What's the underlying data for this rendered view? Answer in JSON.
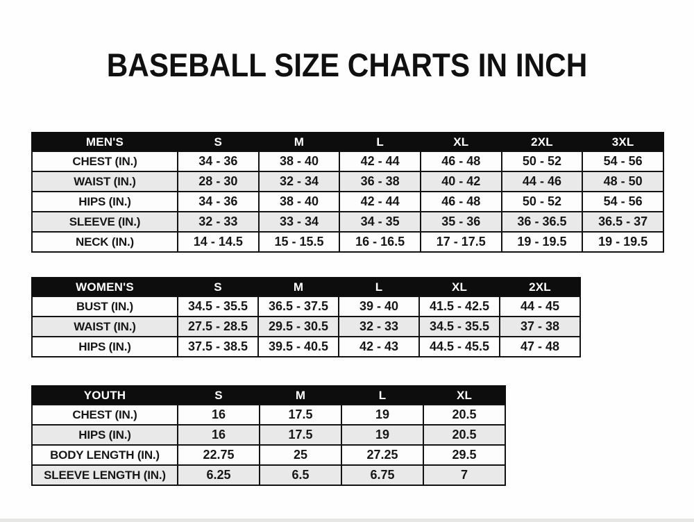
{
  "title": "BASEBALL SIZE CHARTS IN INCH",
  "colors": {
    "header_bg": "#0d0d0d",
    "header_text": "#ffffff",
    "row_white": "#fdfdfd",
    "row_gray": "#e9e9e9",
    "border": "#121212",
    "text": "#161616"
  },
  "chart_data": [
    {
      "type": "table",
      "title": "MEN'S",
      "columns": [
        "MEN'S",
        "S",
        "M",
        "L",
        "XL",
        "2XL",
        "3XL"
      ],
      "rows": [
        [
          "CHEST (IN.)",
          "34 - 36",
          "38 - 40",
          "42 - 44",
          "46 - 48",
          "50 - 52",
          "54 - 56"
        ],
        [
          "WAIST (IN.)",
          "28 - 30",
          "32 - 34",
          "36 - 38",
          "40 - 42",
          "44 - 46",
          "48 - 50"
        ],
        [
          "HIPS (IN.)",
          "34 - 36",
          "38 - 40",
          "42 - 44",
          "46 - 48",
          "50 - 52",
          "54 - 56"
        ],
        [
          "SLEEVE (IN.)",
          "32 - 33",
          "33 - 34",
          "34 - 35",
          "35 - 36",
          "36 - 36.5",
          "36.5 - 37"
        ],
        [
          "NECK (IN.)",
          "14 - 14.5",
          "15 - 15.5",
          "16 - 16.5",
          "17 - 17.5",
          "19 - 19.5",
          "19 - 19.5"
        ]
      ]
    },
    {
      "type": "table",
      "title": "WOMEN'S",
      "columns": [
        "WOMEN'S",
        "S",
        "M",
        "L",
        "XL",
        "2XL"
      ],
      "rows": [
        [
          "BUST (IN.)",
          "34.5 - 35.5",
          "36.5 - 37.5",
          "39 - 40",
          "41.5 - 42.5",
          "44 - 45"
        ],
        [
          "WAIST (IN.)",
          "27.5 - 28.5",
          "29.5 - 30.5",
          "32 - 33",
          "34.5 - 35.5",
          "37 - 38"
        ],
        [
          "HIPS (IN.)",
          "37.5 - 38.5",
          "39.5 - 40.5",
          "42 - 43",
          "44.5 - 45.5",
          "47 - 48"
        ]
      ]
    },
    {
      "type": "table",
      "title": "YOUTH",
      "columns": [
        "YOUTH",
        "S",
        "M",
        "L",
        "XL"
      ],
      "rows": [
        [
          "CHEST (IN.)",
          "16",
          "17.5",
          "19",
          "20.5"
        ],
        [
          "HIPS (IN.)",
          "16",
          "17.5",
          "19",
          "20.5"
        ],
        [
          "BODY LENGTH (IN.)",
          "22.75",
          "25",
          "27.25",
          "29.5"
        ],
        [
          "SLEEVE LENGTH (IN.)",
          "6.25",
          "6.5",
          "6.75",
          "7"
        ]
      ]
    }
  ]
}
